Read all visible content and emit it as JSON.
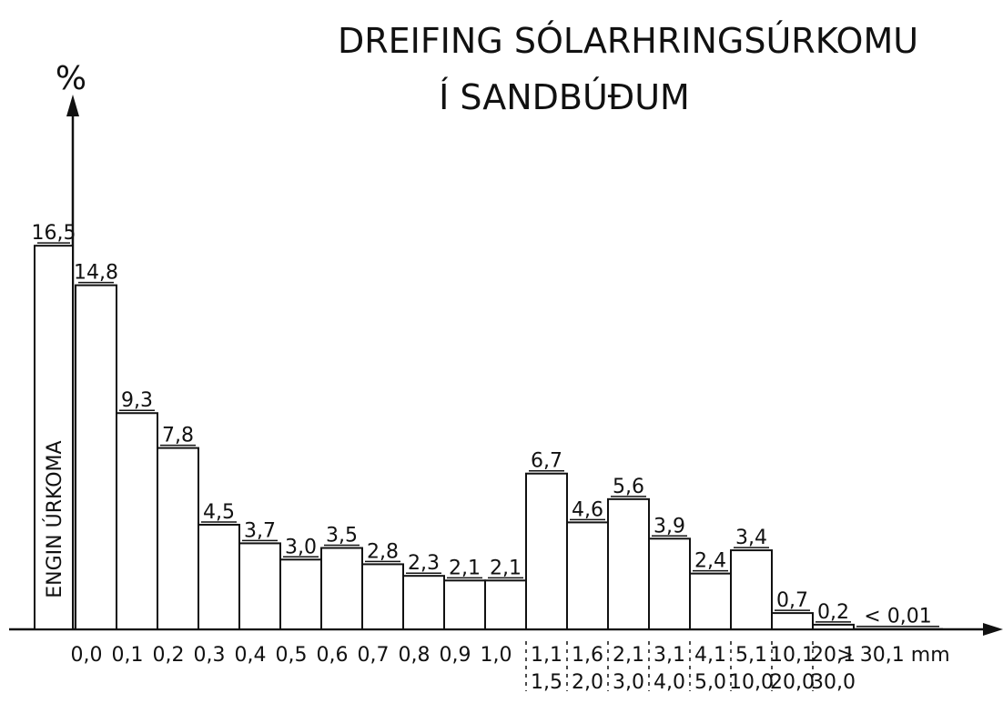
{
  "chart_data": {
    "type": "bar",
    "title": "DREIFING SÓLARHRINGSÚRKOMU",
    "subtitle": "Í SANDBÚÐUM",
    "ylabel": "%",
    "categories": [
      "ENGIN ÚRKOMA",
      "0,0",
      "0,1",
      "0,2",
      "0,3",
      "0,4",
      "0,5",
      "0,6",
      "0,7",
      "0,8",
      "0,9",
      "1,0",
      [
        "1,1",
        "1,5"
      ],
      [
        "1,6",
        "2,0"
      ],
      [
        "2,1",
        "3,0"
      ],
      [
        "3,1",
        "4,0"
      ],
      [
        "4,1",
        "5,0"
      ],
      [
        "5,1",
        "10,0"
      ],
      [
        "10,1",
        "20,0"
      ],
      [
        "20,1",
        "30,0"
      ],
      "> 30,1 mm"
    ],
    "values": [
      16.5,
      14.8,
      9.3,
      7.8,
      4.5,
      3.7,
      3.0,
      3.5,
      2.8,
      2.3,
      2.1,
      2.1,
      6.7,
      4.6,
      5.6,
      3.9,
      2.4,
      3.4,
      0.7,
      0.2,
      0.01
    ],
    "value_labels": [
      "16,5",
      "14,8",
      "9,3",
      "7,8",
      "4,5",
      "3,7",
      "3,0",
      "3,5",
      "2,8",
      "2,3",
      "2,1",
      "2,1",
      "6,7",
      "4,6",
      "5,6",
      "3,9",
      "2,4",
      "3,4",
      "0,7",
      "0,2",
      "< 0,01"
    ],
    "color": "#ffffff",
    "ylim": [
      0,
      23
    ]
  }
}
